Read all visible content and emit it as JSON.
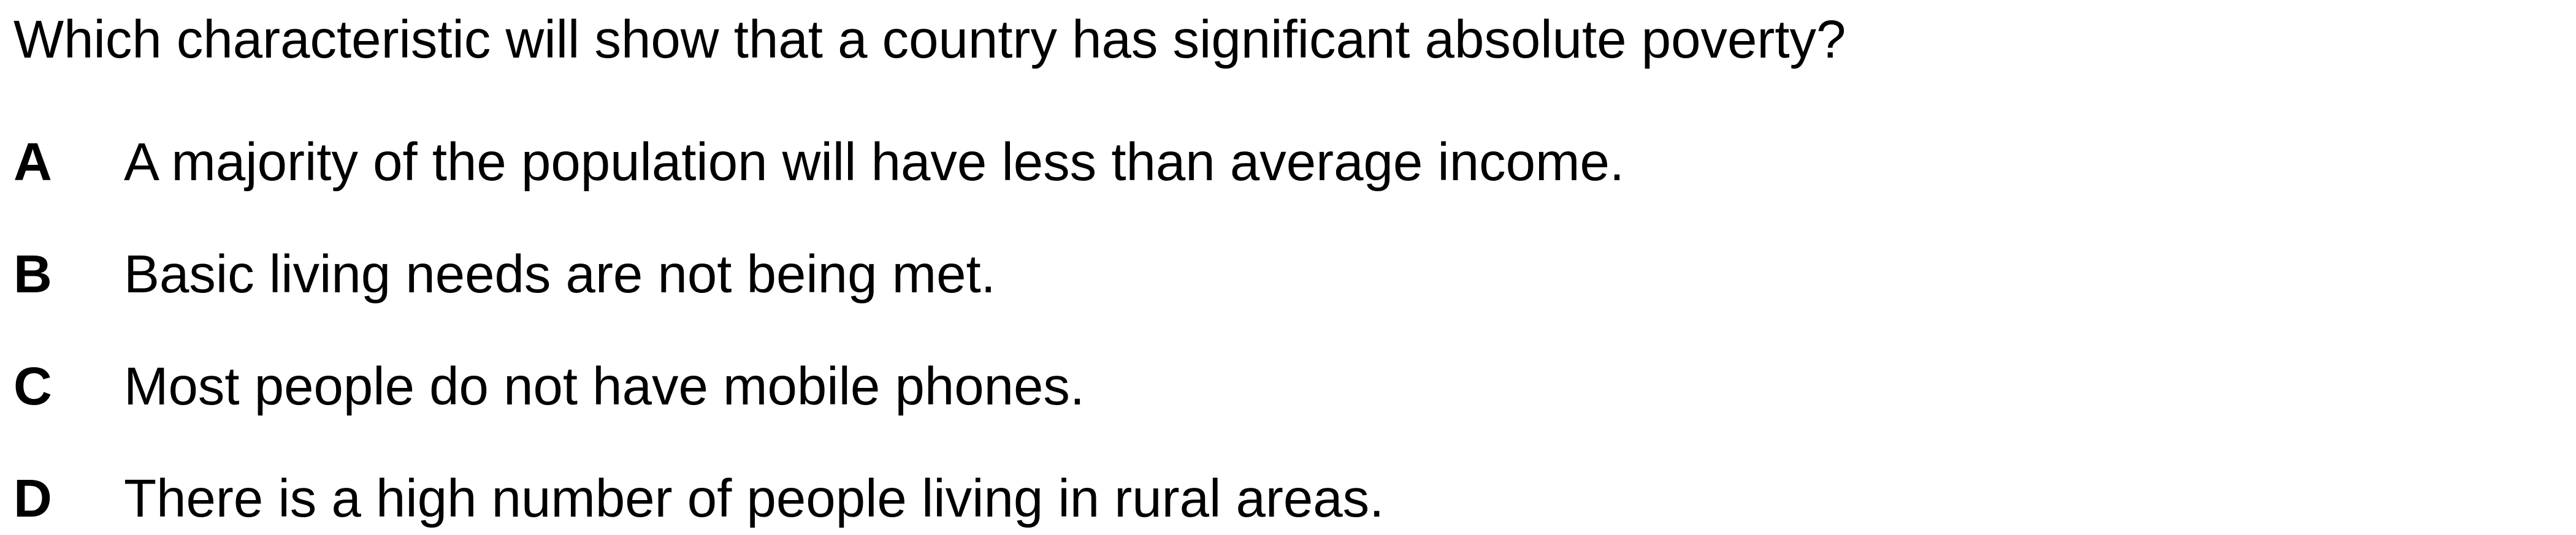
{
  "question": "Which characteristic will show that a country has significant absolute poverty?",
  "options": [
    {
      "letter": "A",
      "text": "A majority of the population will have less than average income."
    },
    {
      "letter": "B",
      "text": "Basic living needs are not being met."
    },
    {
      "letter": "C",
      "text": "Most people do not have mobile phones."
    },
    {
      "letter": "D",
      "text": "There is a high number of people living in rural areas."
    }
  ]
}
